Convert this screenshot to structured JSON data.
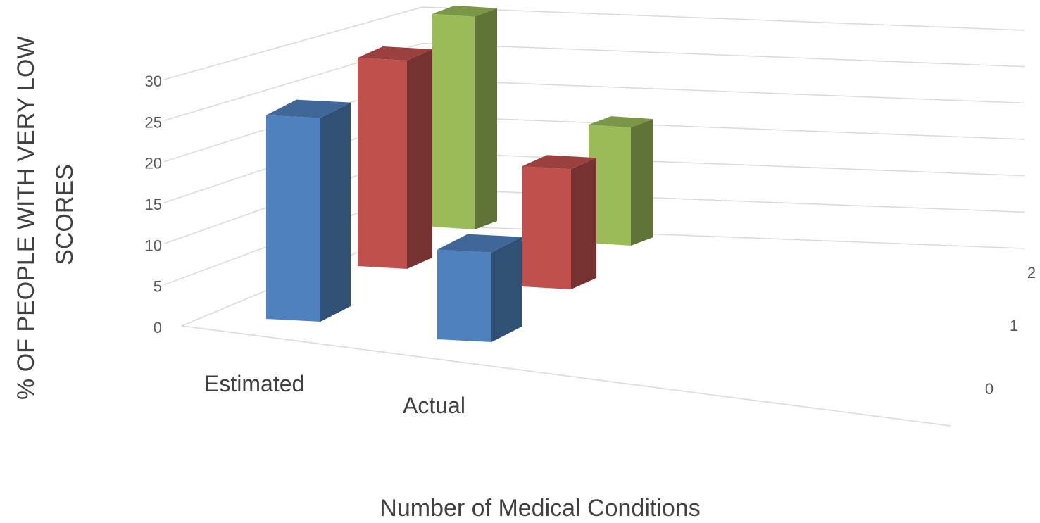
{
  "chart_data": {
    "type": "bar",
    "title": "",
    "xlabel": "Number of Medical Conditions",
    "ylabel": "% OF PEOPLE WITH VERY LOW SCORES",
    "ylabel_lines": [
      "% OF PEOPLE WITH VERY LOW",
      "SCORES"
    ],
    "categories": [
      "Estimated",
      "Actual"
    ],
    "series": [
      {
        "name": "0",
        "color": "#4F81BD",
        "values": [
          25,
          11
        ]
      },
      {
        "name": "1",
        "color": "#C0504D",
        "values": [
          26,
          15
        ]
      },
      {
        "name": "2",
        "color": "#9BBB59",
        "values": [
          27,
          15
        ]
      }
    ],
    "ylim": [
      0,
      30
    ],
    "yticks": [
      "0",
      "5",
      "10",
      "15",
      "20",
      "25",
      "30"
    ],
    "depth_labels": [
      "0",
      "1",
      "2"
    ],
    "grid": true,
    "legend": "none"
  }
}
